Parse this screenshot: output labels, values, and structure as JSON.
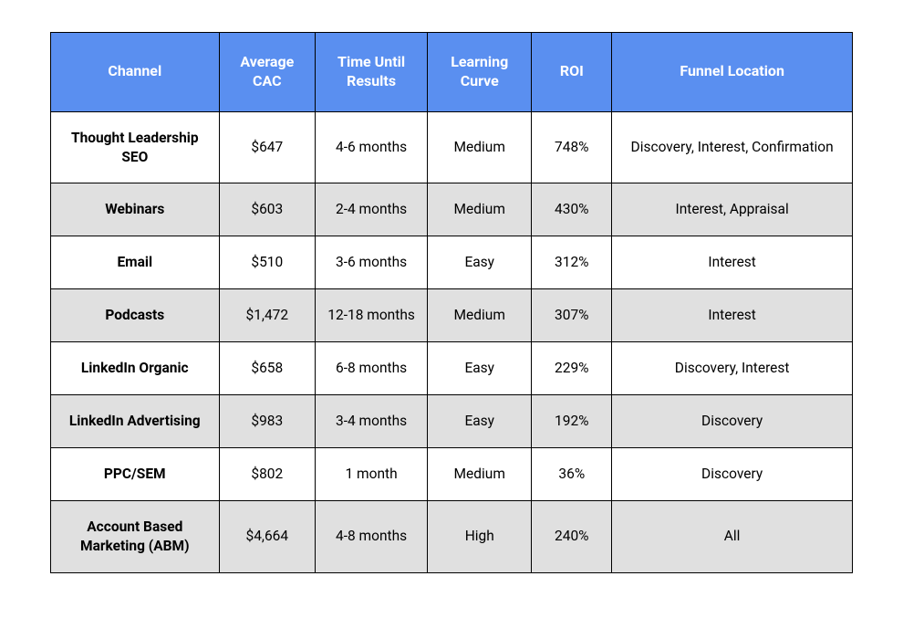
{
  "table": {
    "header_bg": "#5a8ff0",
    "header_color": "#ffffff",
    "border_color": "#000000",
    "row_odd_bg": "#ffffff",
    "row_even_bg": "#e0e0e0",
    "cell_text_color": "#000000",
    "header_font_size": 16,
    "cell_font_size": 15.5,
    "columns": [
      {
        "key": "channel",
        "label": "Channel",
        "width": "21%",
        "bold": true
      },
      {
        "key": "cac",
        "label": "Average CAC",
        "width": "12%"
      },
      {
        "key": "time",
        "label": "Time Until Results",
        "width": "14%"
      },
      {
        "key": "curve",
        "label": "Learning Curve",
        "width": "13%"
      },
      {
        "key": "roi",
        "label": "ROI",
        "width": "10%"
      },
      {
        "key": "funnel",
        "label": "Funnel Location",
        "width": "30%"
      }
    ],
    "rows": [
      {
        "channel": "Thought Leadership SEO",
        "cac": "$647",
        "time": "4-6 months",
        "curve": "Medium",
        "roi": "748%",
        "funnel": "Discovery, Interest, Confirmation"
      },
      {
        "channel": "Webinars",
        "cac": "$603",
        "time": "2-4 months",
        "curve": "Medium",
        "roi": "430%",
        "funnel": "Interest, Appraisal"
      },
      {
        "channel": "Email",
        "cac": "$510",
        "time": "3-6 months",
        "curve": "Easy",
        "roi": "312%",
        "funnel": "Interest"
      },
      {
        "channel": "Podcasts",
        "cac": "$1,472",
        "time": "12-18 months",
        "curve": "Medium",
        "roi": "307%",
        "funnel": "Interest"
      },
      {
        "channel": "LinkedIn Organic",
        "cac": "$658",
        "time": "6-8 months",
        "curve": "Easy",
        "roi": "229%",
        "funnel": "Discovery, Interest"
      },
      {
        "channel": "LinkedIn Advertising",
        "cac": "$983",
        "time": "3-4 months",
        "curve": "Easy",
        "roi": "192%",
        "funnel": "Discovery"
      },
      {
        "channel": "PPC/SEM",
        "cac": "$802",
        "time": "1 month",
        "curve": "Medium",
        "roi": "36%",
        "funnel": "Discovery"
      },
      {
        "channel": "Account Based Marketing (ABM)",
        "cac": "$4,664",
        "time": "4-8 months",
        "curve": "High",
        "roi": "240%",
        "funnel": "All"
      }
    ]
  }
}
